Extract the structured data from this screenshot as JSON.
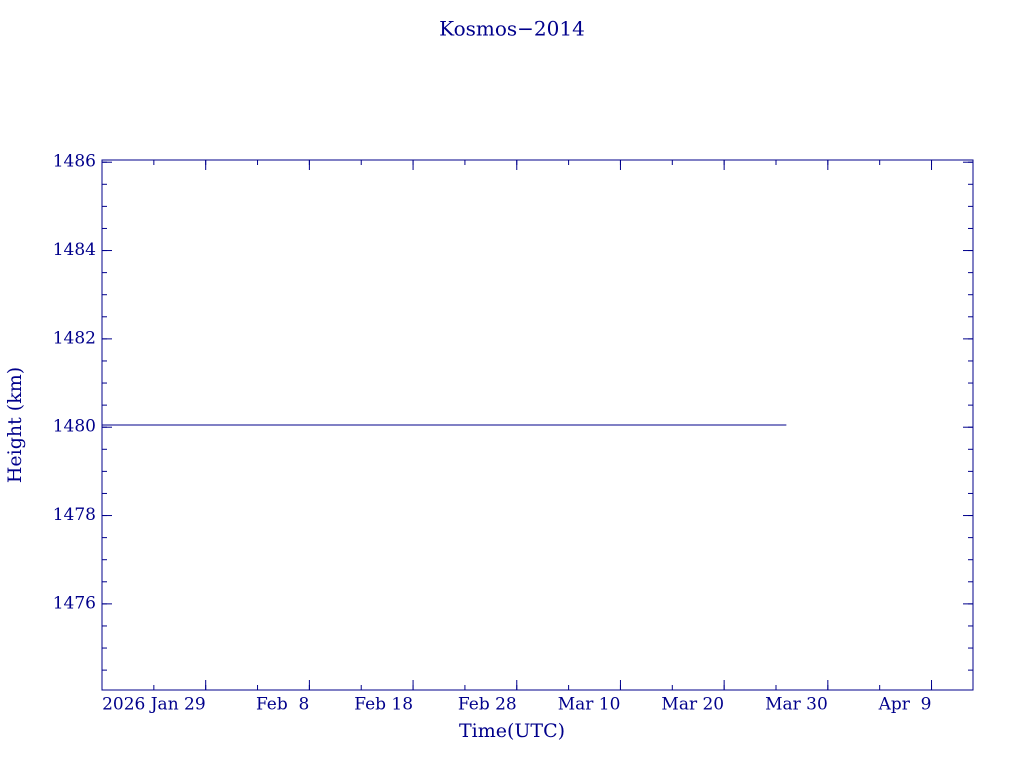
{
  "chart_data": {
    "type": "line",
    "title": "Kosmos−2014",
    "xlabel": "Time(UTC)",
    "ylabel": "Height (km)",
    "xlim": [
      "2026-01-19",
      "2026-04-13"
    ],
    "xticks": [
      {
        "value": "2026-01-29",
        "label": "2026 Jan 29"
      },
      {
        "value": "2026-02-08",
        "label": "Feb  8"
      },
      {
        "value": "2026-02-18",
        "label": "Feb 18"
      },
      {
        "value": "2026-02-28",
        "label": "Feb 28"
      },
      {
        "value": "2026-03-10",
        "label": "Mar 10"
      },
      {
        "value": "2026-03-20",
        "label": "Mar 20"
      },
      {
        "value": "2026-03-30",
        "label": "Mar 30"
      },
      {
        "value": "2026-04-09",
        "label": "Apr  9"
      }
    ],
    "ylim": [
      1474.05,
      1486.05
    ],
    "yticks": [
      1476,
      1478,
      1480,
      1482,
      1484,
      1486
    ],
    "series": [
      {
        "color": "#00008b",
        "x": [
          "2026-01-19",
          "2026-03-26"
        ],
        "values": [
          1480.05,
          1480.05
        ]
      }
    ]
  }
}
